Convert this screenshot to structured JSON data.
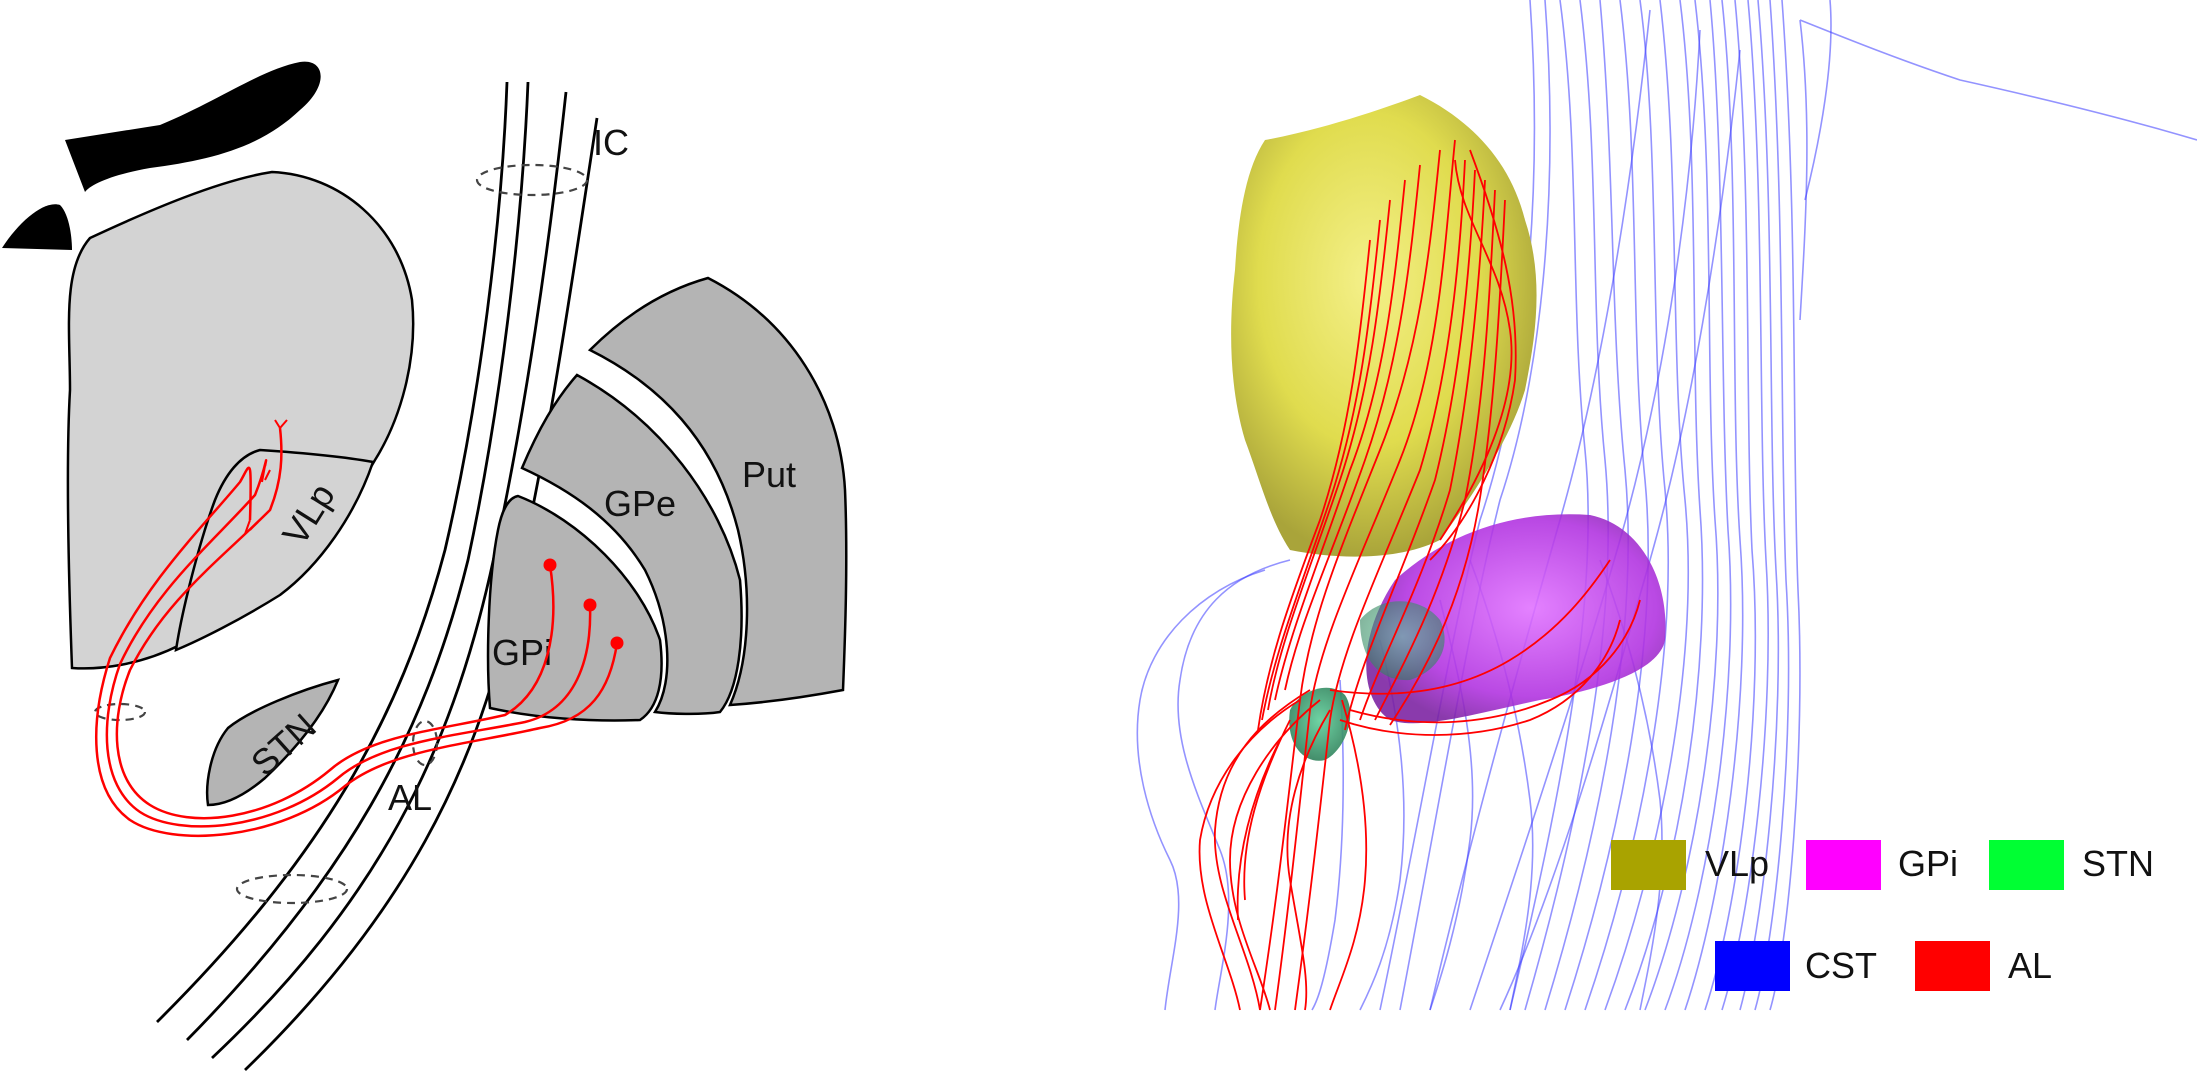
{
  "schematic": {
    "labels": {
      "ic": "IC",
      "vlp": "VLp",
      "gpe": "GPe",
      "put": "Put",
      "gpi": "GPi",
      "stn": "STN",
      "al": "AL"
    },
    "colors": {
      "thalamus_fill": "#d3d3d3",
      "nucleus_fill": "#b4b4b4",
      "outline": "#000000",
      "ventricle": "#000000",
      "al_fibers": "#ff0000"
    }
  },
  "tractography": {
    "colors": {
      "vlp_surface": "#e0dc4e",
      "gpi_surface": "#b030e0",
      "stn_surface": "#3a9a6a",
      "cst_tracts": "#2222ff",
      "al_tracts": "#ff0000"
    }
  },
  "legend": {
    "items": [
      {
        "label": "VLp",
        "color": "#a9a300"
      },
      {
        "label": "GPi",
        "color": "#ff00ff"
      },
      {
        "label": "STN",
        "color": "#00ff33"
      },
      {
        "label": "CST",
        "color": "#0000ff"
      },
      {
        "label": "AL",
        "color": "#ff0000"
      }
    ]
  }
}
